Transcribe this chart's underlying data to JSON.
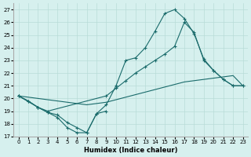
{
  "xlabel": "Humidex (Indice chaleur)",
  "background_color": "#d6f0ee",
  "grid_color": "#b8dcd8",
  "line_color": "#1a6b6b",
  "xlim": [
    -0.5,
    23.5
  ],
  "ylim": [
    17,
    27.5
  ],
  "yticks": [
    17,
    18,
    19,
    20,
    21,
    22,
    23,
    24,
    25,
    26,
    27
  ],
  "xticks": [
    0,
    1,
    2,
    3,
    4,
    5,
    6,
    7,
    8,
    9,
    10,
    11,
    12,
    13,
    14,
    15,
    16,
    17,
    18,
    19,
    20,
    21,
    22,
    23
  ],
  "line1_x": [
    0,
    1,
    2,
    3,
    4,
    5,
    6,
    7,
    8,
    9,
    10,
    11,
    12,
    13,
    14,
    15,
    16,
    17,
    18,
    19,
    20,
    21,
    22,
    23
  ],
  "line1_y": [
    20.2,
    19.8,
    19.3,
    18.9,
    18.7,
    18.1,
    17.7,
    17.3,
    18.8,
    19.5,
    21.0,
    23.0,
    23.2,
    24.0,
    25.3,
    26.7,
    27.0,
    26.3,
    25.1,
    23.1,
    22.2,
    21.5,
    21.0,
    21.0
  ],
  "line2_x": [
    0,
    2,
    3,
    9,
    10,
    11,
    12,
    13,
    14,
    15,
    16,
    17,
    18,
    19,
    20,
    21,
    22,
    23
  ],
  "line2_y": [
    20.2,
    19.3,
    19.0,
    20.2,
    20.8,
    21.4,
    22.0,
    22.5,
    23.0,
    23.5,
    24.1,
    26.0,
    25.2,
    23.0,
    22.2,
    21.5,
    21.0,
    21.0
  ],
  "line3_x": [
    0,
    1,
    2,
    3,
    4,
    5,
    6,
    7,
    8,
    9,
    10,
    11,
    12,
    13,
    14,
    15,
    16,
    17,
    18,
    19,
    20,
    21,
    22,
    23
  ],
  "line3_y": [
    20.2,
    20.1,
    20.0,
    19.9,
    19.8,
    19.7,
    19.6,
    19.5,
    19.6,
    19.7,
    19.9,
    20.1,
    20.3,
    20.5,
    20.7,
    20.9,
    21.1,
    21.3,
    21.4,
    21.5,
    21.6,
    21.7,
    21.8,
    21.0
  ],
  "line4_x": [
    0,
    1,
    2,
    3,
    4,
    5,
    6,
    7,
    8,
    9
  ],
  "line4_y": [
    20.2,
    19.8,
    19.3,
    18.9,
    18.5,
    17.7,
    17.3,
    17.3,
    18.8,
    19.0
  ]
}
